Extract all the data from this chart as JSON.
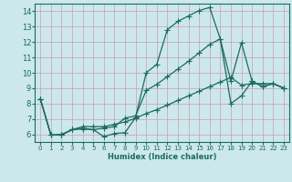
{
  "xlabel": "Humidex (Indice chaleur)",
  "bg_color": "#cce8ec",
  "grid_color": "#b8d8dc",
  "line_color": "#1a6b5e",
  "marker": "+",
  "markersize": 4,
  "linewidth": 0.9,
  "xlim": [
    -0.5,
    23.5
  ],
  "ylim": [
    5.5,
    14.5
  ],
  "xticks": [
    0,
    1,
    2,
    3,
    4,
    5,
    6,
    7,
    8,
    9,
    10,
    11,
    12,
    13,
    14,
    15,
    16,
    17,
    18,
    19,
    20,
    21,
    22,
    23
  ],
  "yticks": [
    6,
    7,
    8,
    9,
    10,
    11,
    12,
    13,
    14
  ],
  "line1_x": [
    0,
    1,
    2,
    3,
    4,
    5,
    6,
    7,
    8,
    9,
    10,
    11,
    12,
    13,
    14,
    15,
    16,
    17,
    18,
    19,
    20,
    21,
    22,
    23
  ],
  "line1_y": [
    8.3,
    5.95,
    5.95,
    6.3,
    6.35,
    6.3,
    5.85,
    6.05,
    6.1,
    7.1,
    10.0,
    10.55,
    12.8,
    13.35,
    13.7,
    14.05,
    14.25,
    12.2,
    9.45,
    11.95,
    9.45,
    9.1,
    9.3,
    9.0
  ],
  "line2_x": [
    0,
    1,
    2,
    3,
    4,
    5,
    6,
    7,
    8,
    9,
    10,
    11,
    12,
    13,
    14,
    15,
    16,
    17,
    18,
    19,
    20,
    21,
    22,
    23
  ],
  "line2_y": [
    8.3,
    5.95,
    5.95,
    6.3,
    6.4,
    6.3,
    6.4,
    6.5,
    7.05,
    7.2,
    8.85,
    9.25,
    9.75,
    10.25,
    10.75,
    11.3,
    11.85,
    12.2,
    8.0,
    8.5,
    9.45,
    9.1,
    9.3,
    9.0
  ],
  "line3_x": [
    0,
    1,
    2,
    3,
    4,
    5,
    6,
    7,
    8,
    9,
    10,
    11,
    12,
    13,
    14,
    15,
    16,
    17,
    18,
    19,
    20,
    21,
    22,
    23
  ],
  "line3_y": [
    8.3,
    5.95,
    6.0,
    6.3,
    6.5,
    6.5,
    6.5,
    6.65,
    6.8,
    7.05,
    7.35,
    7.6,
    7.9,
    8.2,
    8.5,
    8.8,
    9.1,
    9.4,
    9.7,
    9.2,
    9.3,
    9.3,
    9.3,
    9.0
  ]
}
